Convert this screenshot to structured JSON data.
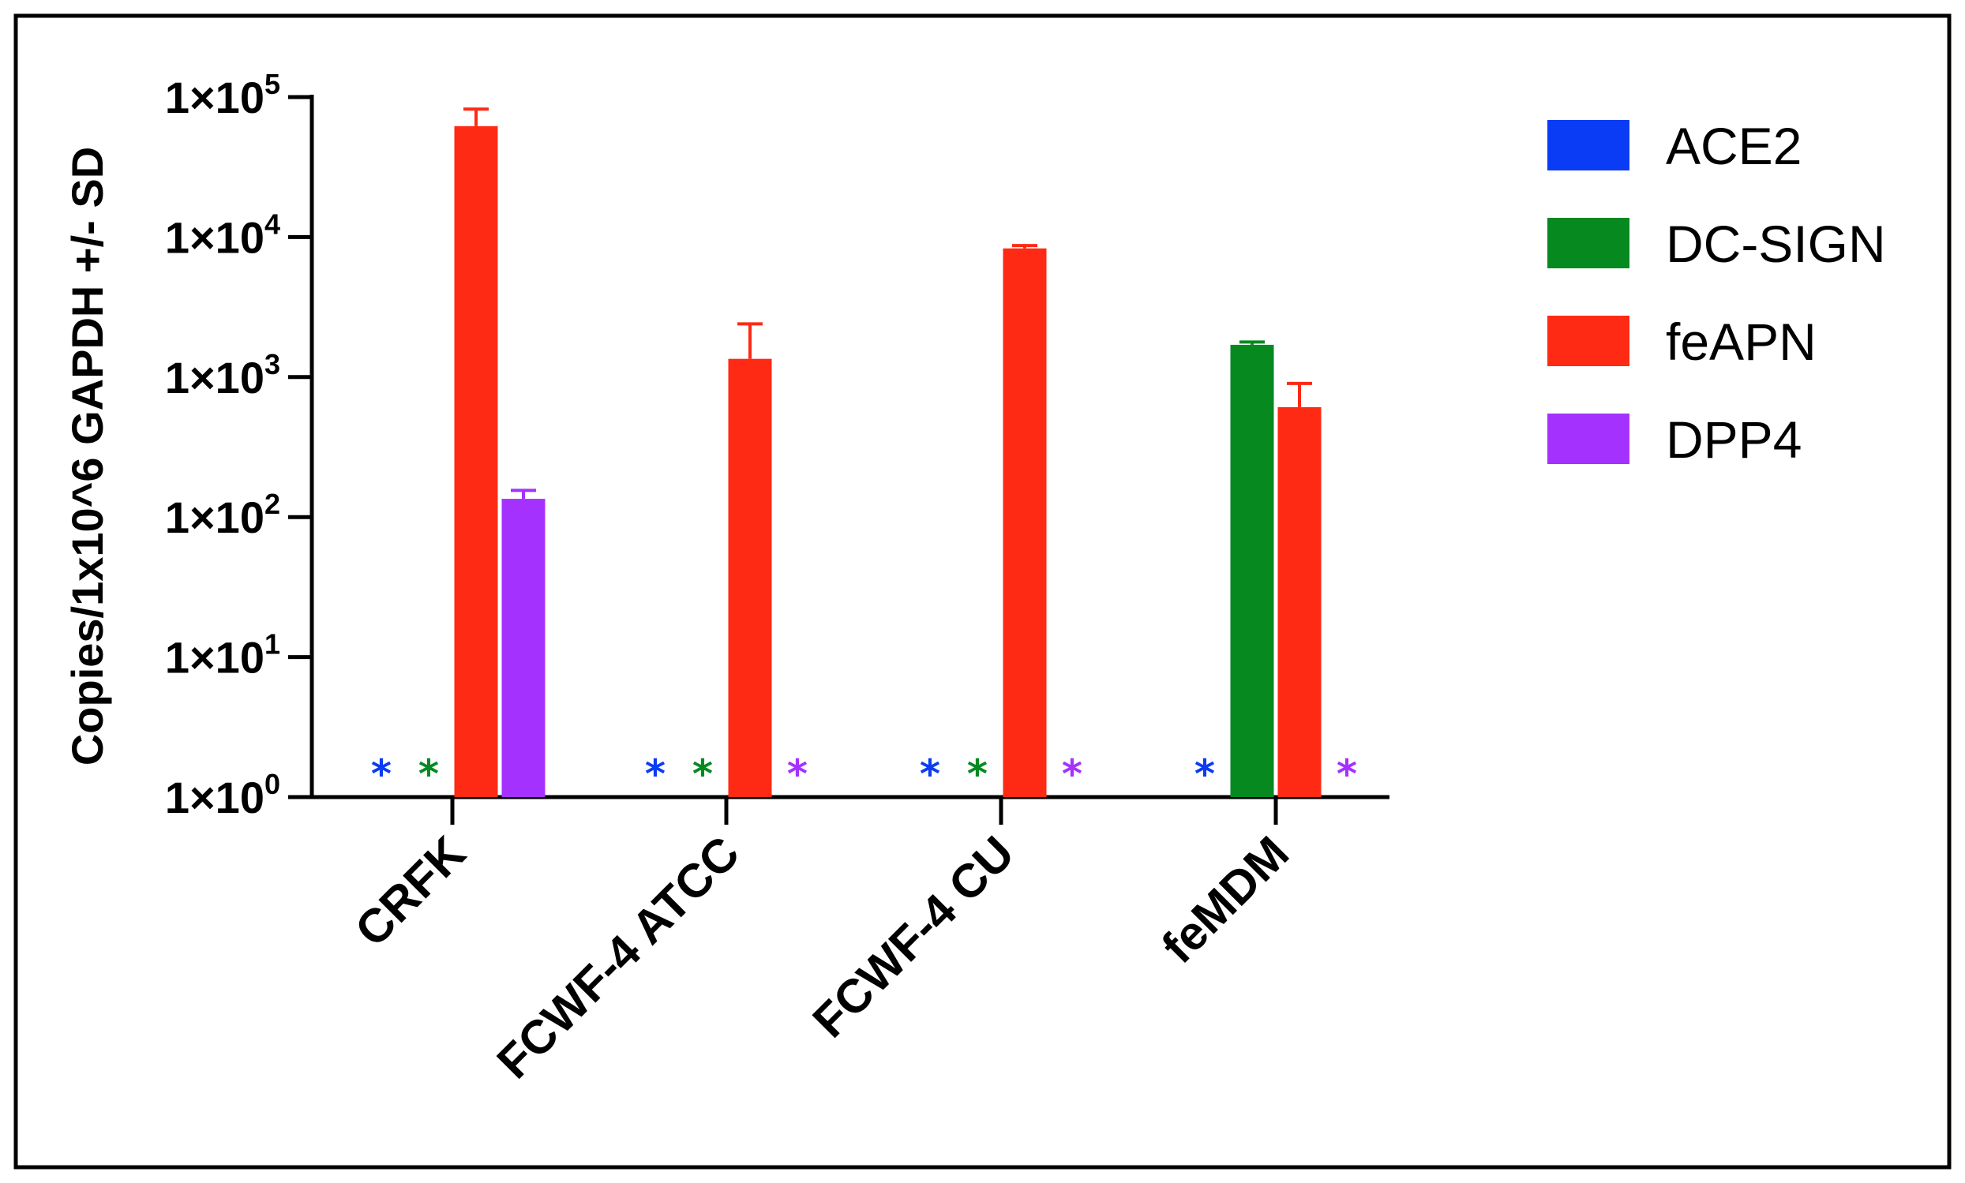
{
  "chart_data": {
    "type": "bar",
    "title": "",
    "xlabel": "",
    "ylabel": "Copies/1x10^6 GAPDH +/- SD",
    "yscale": "log",
    "ylim": [
      1,
      100000
    ],
    "yticks": [
      {
        "base": "1×10",
        "exp": "0",
        "value": 1
      },
      {
        "base": "1×10",
        "exp": "1",
        "value": 10
      },
      {
        "base": "1×10",
        "exp": "2",
        "value": 100
      },
      {
        "base": "1×10",
        "exp": "3",
        "value": 1000
      },
      {
        "base": "1×10",
        "exp": "4",
        "value": 10000
      },
      {
        "base": "1×10",
        "exp": "5",
        "value": 100000
      }
    ],
    "categories": [
      "CRFK",
      "FCWF-4 ATCC",
      "FCWF-4 CU",
      "feMDM"
    ],
    "series": [
      {
        "name": "ACE2",
        "color": "#0a3cf5",
        "values": [
          null,
          null,
          null,
          null
        ],
        "sd": [
          null,
          null,
          null,
          null
        ],
        "not_detected": [
          true,
          true,
          true,
          true
        ]
      },
      {
        "name": "DC-SIGN",
        "color": "#068a20",
        "values": [
          null,
          null,
          null,
          1700
        ],
        "sd": [
          null,
          null,
          null,
          80
        ],
        "not_detected": [
          true,
          true,
          true,
          false
        ]
      },
      {
        "name": "feAPN",
        "color": "#ff2a14",
        "values": [
          62000,
          1350,
          8300,
          610
        ],
        "sd": [
          20000,
          1050,
          400,
          290
        ],
        "not_detected": [
          false,
          false,
          false,
          false
        ]
      },
      {
        "name": "DPP4",
        "color": "#a531ff",
        "values": [
          135,
          null,
          null,
          null
        ],
        "sd": [
          20,
          null,
          null,
          null
        ],
        "not_detected": [
          false,
          true,
          true,
          true
        ]
      }
    ],
    "not_detected_marker": "*",
    "legend_position": "right",
    "grid": false
  }
}
